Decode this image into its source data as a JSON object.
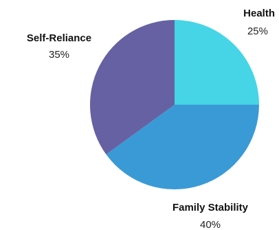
{
  "chart_data": {
    "type": "pie",
    "title": "",
    "slices": [
      {
        "label": "Health",
        "value": 25,
        "display": "25%",
        "color": "#45D5E6"
      },
      {
        "label": "Family Stability",
        "value": 40,
        "display": "40%",
        "color": "#3A9AD6"
      },
      {
        "label": "Self-Reliance",
        "value": 35,
        "display": "35%",
        "color": "#6661A2"
      }
    ],
    "start": "12 o'clock",
    "direction": "clockwise",
    "legend": "none"
  }
}
